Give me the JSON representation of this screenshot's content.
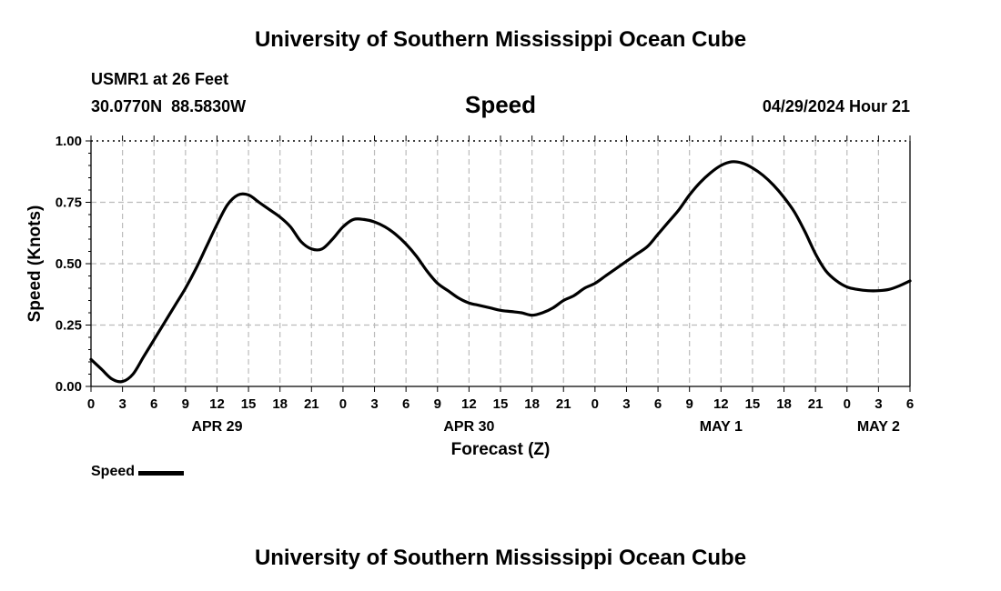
{
  "page": {
    "title_top": "University of Southern Mississippi Ocean Cube",
    "title_bottom": "University of Southern Mississippi Ocean Cube",
    "station_line1": "USMR1 at 26 Feet",
    "station_line2": "30.0770N  88.5830W",
    "center_title": "Speed",
    "datetime": "04/29/2024 Hour 21"
  },
  "chart_data": {
    "type": "line",
    "title": "Speed",
    "xlabel": "Forecast (Z)",
    "ylabel": "Speed (Knots)",
    "ylim": [
      0,
      1.0
    ],
    "yticks": [
      "0.00",
      "0.25",
      "0.50",
      "0.75",
      "1.00"
    ],
    "xlim": [
      0,
      78
    ],
    "xticks": [
      "0",
      "3",
      "6",
      "9",
      "12",
      "15",
      "18",
      "21",
      "0",
      "3",
      "6",
      "9",
      "12",
      "15",
      "18",
      "21",
      "0",
      "3",
      "6",
      "9",
      "12",
      "15",
      "18",
      "21",
      "0",
      "3",
      "6"
    ],
    "date_labels": [
      {
        "label": "APR 29",
        "hour": 12
      },
      {
        "label": "APR 30",
        "hour": 36
      },
      {
        "label": "MAY 1",
        "hour": 60
      },
      {
        "label": "MAY 2",
        "hour": 75
      }
    ],
    "grid": true,
    "legend": "bottom-left",
    "series": [
      {
        "name": "Speed",
        "color": "#000000",
        "x": [
          0,
          1,
          2,
          3,
          4,
          5,
          6,
          7,
          8,
          9,
          10,
          11,
          12,
          13,
          14,
          15,
          16,
          17,
          18,
          19,
          20,
          21,
          22,
          23,
          24,
          25,
          26,
          27,
          28,
          29,
          30,
          31,
          32,
          33,
          34,
          35,
          36,
          37,
          38,
          39,
          40,
          41,
          42,
          43,
          44,
          45,
          46,
          47,
          48,
          49,
          50,
          51,
          52,
          53,
          54,
          55,
          56,
          57,
          58,
          59,
          60,
          61,
          62,
          63,
          64,
          65,
          66,
          67,
          68,
          69,
          70,
          71,
          72,
          73,
          74,
          75,
          76,
          77,
          78
        ],
        "values": [
          0.11,
          0.07,
          0.03,
          0.02,
          0.05,
          0.12,
          0.19,
          0.26,
          0.33,
          0.4,
          0.48,
          0.57,
          0.66,
          0.74,
          0.78,
          0.78,
          0.75,
          0.72,
          0.69,
          0.65,
          0.59,
          0.56,
          0.56,
          0.6,
          0.65,
          0.68,
          0.68,
          0.67,
          0.65,
          0.62,
          0.58,
          0.53,
          0.47,
          0.42,
          0.39,
          0.36,
          0.34,
          0.33,
          0.32,
          0.31,
          0.305,
          0.3,
          0.29,
          0.3,
          0.32,
          0.35,
          0.37,
          0.4,
          0.42,
          0.45,
          0.48,
          0.51,
          0.54,
          0.57,
          0.62,
          0.67,
          0.72,
          0.78,
          0.83,
          0.87,
          0.9,
          0.915,
          0.91,
          0.89,
          0.86,
          0.82,
          0.77,
          0.71,
          0.63,
          0.54,
          0.47,
          0.43,
          0.405,
          0.395,
          0.39,
          0.39,
          0.395,
          0.41,
          0.43
        ]
      }
    ]
  }
}
